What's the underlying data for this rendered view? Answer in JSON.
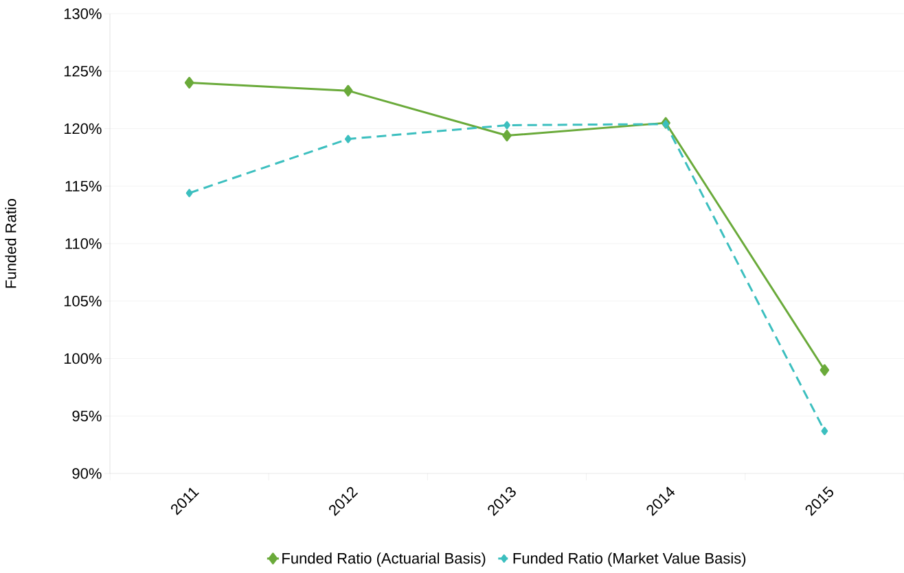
{
  "chart_data": {
    "type": "line",
    "ylabel": "Funded Ratio",
    "categories": [
      "2011",
      "2012",
      "2013",
      "2014",
      "2015"
    ],
    "series": [
      {
        "name": "Funded Ratio (Actuarial Basis)",
        "color": "#6aaa3a",
        "line_style": "solid",
        "values": [
          124.0,
          123.3,
          119.4,
          120.5,
          99.0
        ]
      },
      {
        "name": "Funded Ratio (Market Value Basis)",
        "color": "#3cbfbf",
        "line_style": "dashed",
        "values": [
          114.4,
          119.1,
          120.3,
          120.4,
          93.7
        ]
      }
    ],
    "ylim": [
      90,
      130
    ],
    "yticks": [
      {
        "value": 90,
        "label": "90%"
      },
      {
        "value": 95,
        "label": "95%"
      },
      {
        "value": 100,
        "label": "100%"
      },
      {
        "value": 105,
        "label": "105%"
      },
      {
        "value": 110,
        "label": "110%"
      },
      {
        "value": 115,
        "label": "115%"
      },
      {
        "value": 120,
        "label": "120%"
      },
      {
        "value": 125,
        "label": "125%"
      },
      {
        "value": 130,
        "label": "130%"
      }
    ],
    "grid": "y",
    "legend": "bottom",
    "marker": "diamond"
  }
}
